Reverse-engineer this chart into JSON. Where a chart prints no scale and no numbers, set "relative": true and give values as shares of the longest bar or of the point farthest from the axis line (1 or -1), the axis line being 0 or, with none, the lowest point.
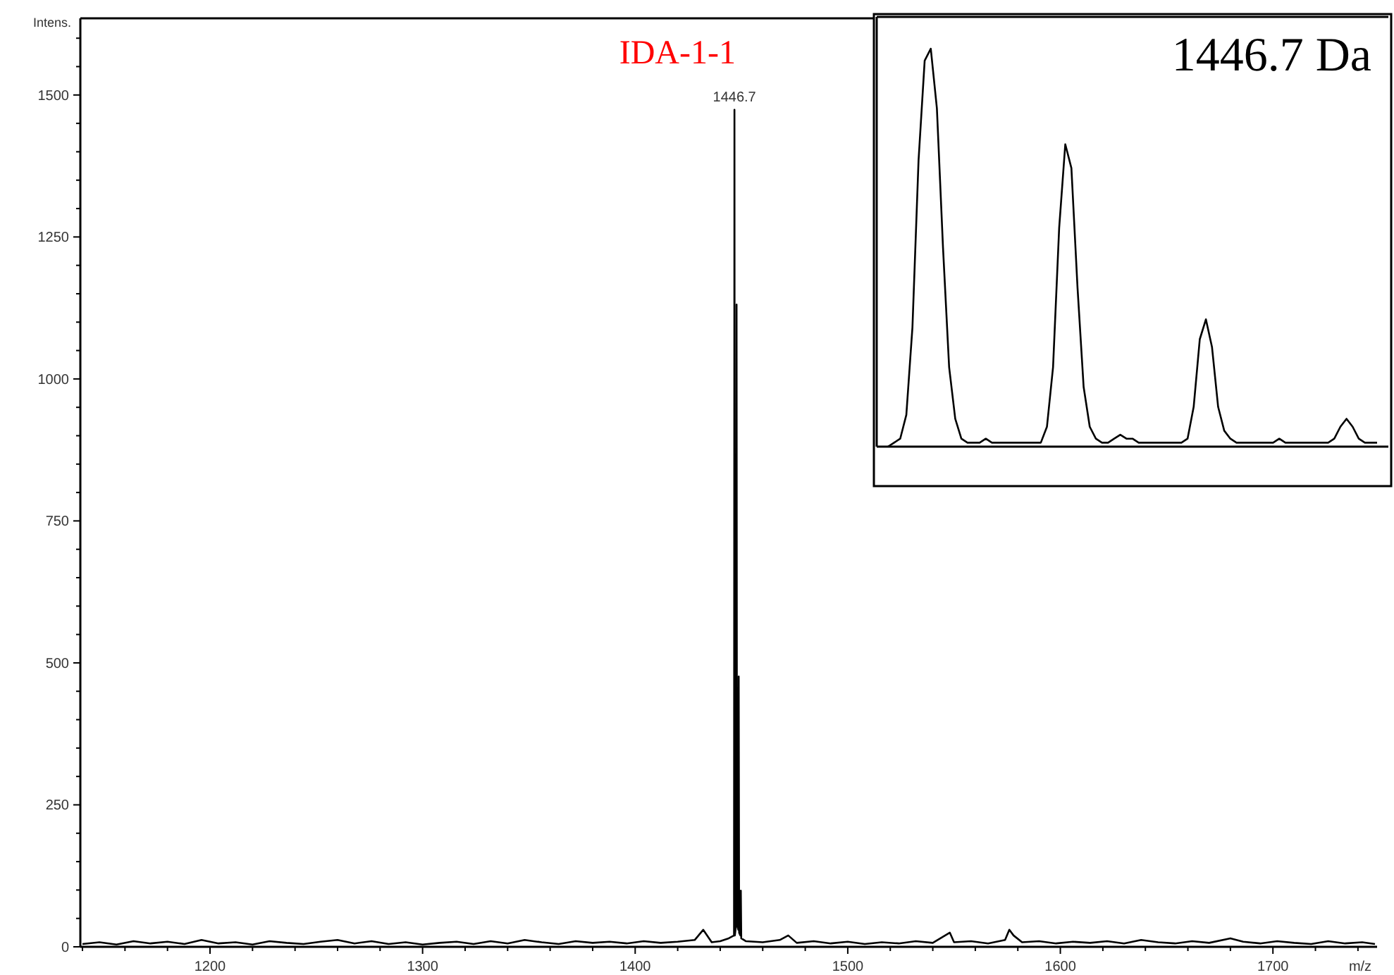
{
  "chart_data": [
    {
      "type": "line",
      "xlabel": "m/z",
      "ylabel": "Intens.",
      "x": [
        1140,
        1148,
        1156,
        1164,
        1172,
        1180,
        1188,
        1196,
        1204,
        1212,
        1220,
        1228,
        1236,
        1244,
        1252,
        1260,
        1268,
        1276,
        1284,
        1292,
        1300,
        1308,
        1316,
        1324,
        1332,
        1340,
        1348,
        1356,
        1364,
        1372,
        1380,
        1388,
        1396,
        1404,
        1412,
        1420,
        1428,
        1432,
        1436,
        1440,
        1444,
        1446.5,
        1446.7,
        1446.9,
        1447.5,
        1447.7,
        1447.9,
        1448.5,
        1448.7,
        1448.9,
        1449.5,
        1449.7,
        1449.9,
        1452,
        1460,
        1468,
        1472,
        1476,
        1484,
        1492,
        1500,
        1508,
        1516,
        1524,
        1532,
        1540,
        1548,
        1550,
        1558,
        1566,
        1574,
        1576,
        1578,
        1582,
        1590,
        1598,
        1606,
        1614,
        1622,
        1630,
        1638,
        1646,
        1654,
        1662,
        1670,
        1680,
        1686,
        1694,
        1702,
        1710,
        1718,
        1726,
        1734,
        1742,
        1748
      ],
      "series": [
        {
          "color": "#000000",
          "values": [
            5,
            8,
            4,
            10,
            6,
            9,
            5,
            12,
            6,
            8,
            4,
            10,
            7,
            5,
            9,
            12,
            6,
            10,
            5,
            8,
            4,
            7,
            9,
            5,
            10,
            6,
            12,
            8,
            5,
            10,
            7,
            9,
            6,
            10,
            7,
            9,
            12,
            30,
            8,
            10,
            15,
            20,
            1474,
            20,
            40,
            1131,
            40,
            30,
            476,
            25,
            20,
            99,
            15,
            10,
            8,
            12,
            20,
            7,
            10,
            6,
            9,
            5,
            8,
            6,
            10,
            7,
            25,
            8,
            10,
            6,
            12,
            30,
            20,
            8,
            10,
            6,
            9,
            7,
            10,
            6,
            12,
            8,
            6,
            10,
            7,
            15,
            9,
            6,
            10,
            7,
            5,
            10,
            6,
            8,
            5
          ]
        }
      ],
      "xlim": [
        1139,
        1749
      ],
      "xticks": [
        {
          "value": 1140,
          "label": null
        },
        {
          "value": 1160,
          "label": null
        },
        {
          "value": 1180,
          "label": null
        },
        1200,
        {
          "value": 1220,
          "label": null
        },
        {
          "value": 1240,
          "label": null
        },
        {
          "value": 1260,
          "label": null
        },
        {
          "value": 1280,
          "label": null
        },
        1300,
        {
          "value": 1320,
          "label": null
        },
        {
          "value": 1340,
          "label": null
        },
        {
          "value": 1360,
          "label": null
        },
        {
          "value": 1380,
          "label": null
        },
        1400,
        {
          "value": 1420,
          "label": null
        },
        {
          "value": 1440,
          "label": null
        },
        {
          "value": 1460,
          "label": null
        },
        {
          "value": 1480,
          "label": null
        },
        1500,
        {
          "value": 1520,
          "label": null
        },
        {
          "value": 1540,
          "label": null
        },
        {
          "value": 1560,
          "label": null
        },
        {
          "value": 1580,
          "label": null
        },
        1600,
        {
          "value": 1620,
          "label": null
        },
        {
          "value": 1640,
          "label": null
        },
        {
          "value": 1660,
          "label": null
        },
        {
          "value": 1680,
          "label": null
        },
        1700,
        {
          "value": 1720,
          "label": null
        },
        {
          "value": 1740,
          "label": null
        }
      ],
      "ylim": [
        0,
        1635
      ],
      "yticks": [
        0,
        {
          "value": 50,
          "label": null
        },
        {
          "value": 100,
          "label": null
        },
        {
          "value": 150,
          "label": null
        },
        {
          "value": 200,
          "label": null
        },
        250,
        {
          "value": 300,
          "label": null
        },
        {
          "value": 350,
          "label": null
        },
        {
          "value": 400,
          "label": null
        },
        {
          "value": 450,
          "label": null
        },
        500,
        {
          "value": 550,
          "label": null
        },
        {
          "value": 600,
          "label": null
        },
        {
          "value": 650,
          "label": null
        },
        {
          "value": 700,
          "label": null
        },
        750,
        {
          "value": 800,
          "label": null
        },
        {
          "value": 850,
          "label": null
        },
        {
          "value": 900,
          "label": null
        },
        {
          "value": 950,
          "label": null
        },
        1000,
        {
          "value": 1050,
          "label": null
        },
        {
          "value": 1100,
          "label": null
        },
        {
          "value": 1150,
          "label": null
        },
        {
          "value": 1200,
          "label": null
        },
        1250,
        {
          "value": 1300,
          "label": null
        },
        {
          "value": 1350,
          "label": null
        },
        {
          "value": 1400,
          "label": null
        },
        {
          "value": 1450,
          "label": null
        },
        1500,
        {
          "value": 1550,
          "label": null
        },
        {
          "value": 1600,
          "label": null
        }
      ],
      "annotations": [
        {
          "text": "1446.7",
          "x": 1446.7,
          "y": 1474
        },
        "IDA-1-1"
      ]
    },
    {
      "type": "line",
      "title": "1446.7 Da",
      "relative": true,
      "categories": [
        null,
        null,
        null,
        null,
        null,
        null,
        null,
        null,
        null,
        null,
        null,
        null,
        null,
        null,
        null,
        null,
        null,
        null,
        null,
        null,
        null,
        null,
        null,
        null,
        null,
        null,
        null,
        null,
        null,
        null,
        null,
        null,
        null,
        null,
        null,
        null,
        null,
        null,
        null,
        null,
        null,
        null,
        null,
        null,
        null,
        null,
        null,
        null,
        null,
        null,
        null,
        null,
        null,
        null,
        null,
        null,
        null,
        null,
        null,
        null,
        null,
        null,
        null,
        null,
        null,
        null,
        null,
        null,
        null,
        null,
        null,
        null,
        null,
        null,
        null,
        null,
        null,
        null,
        null,
        null,
        null
      ],
      "series": [
        {
          "color": "#000000",
          "values": [
            0,
            0.01,
            0.02,
            0.08,
            0.3,
            0.72,
            0.97,
            1,
            0.85,
            0.5,
            0.2,
            0.07,
            0.02,
            0.01,
            0.01,
            0.01,
            0.02,
            0.01,
            0.01,
            0.01,
            0.01,
            0.01,
            0.01,
            0.01,
            0.01,
            0.01,
            0.05,
            0.2,
            0.55,
            0.76,
            0.7,
            0.4,
            0.15,
            0.05,
            0.02,
            0.01,
            0.01,
            0.02,
            0.03,
            0.02,
            0.02,
            0.01,
            0.01,
            0.01,
            0.01,
            0.01,
            0.01,
            0.01,
            0.01,
            0.02,
            0.1,
            0.27,
            0.32,
            0.25,
            0.1,
            0.04,
            0.02,
            0.01,
            0.01,
            0.01,
            0.01,
            0.01,
            0.01,
            0.01,
            0.02,
            0.01,
            0.01,
            0.01,
            0.01,
            0.01,
            0.01,
            0.01,
            0.01,
            0.02,
            0.05,
            0.07,
            0.05,
            0.02,
            0.01,
            0.01,
            0.01
          ]
        }
      ]
    }
  ]
}
